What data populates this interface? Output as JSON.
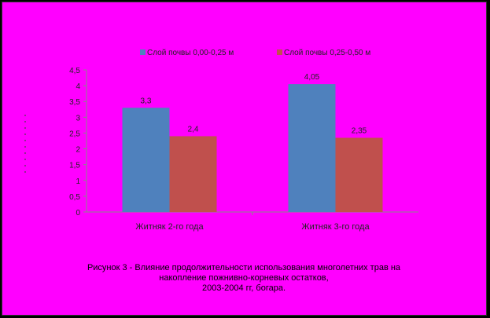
{
  "chart_data": {
    "type": "bar",
    "categories": [
      "Житняк 2-го года",
      "Житняк 3-го года"
    ],
    "series": [
      {
        "name": "Слой почвы 0,00-0,25 м",
        "values": [
          3.3,
          4.05
        ],
        "labels": [
          "3,3",
          "4,05"
        ],
        "color": "#4f81bd"
      },
      {
        "name": "Слой почвы 0,25-0,50 м",
        "values": [
          2.4,
          2.35
        ],
        "labels": [
          "2,4",
          "2,35"
        ],
        "color": "#c0504d"
      }
    ],
    "ylim": [
      0,
      4.5
    ],
    "yticks": [
      "0",
      "0,5",
      "1",
      "1,5",
      "2",
      "2,5",
      "3",
      "3,5",
      "4",
      "4,5"
    ],
    "ylabel": "",
    "legend": "top",
    "grid": false
  },
  "caption": {
    "line1": "Рисунок 3 - Влияние продолжительности использования многолетних трав на",
    "line2": "накопление пожнивно-корневых остатков,",
    "line3": "2003-2004 гг, богара."
  },
  "colors": {
    "background": "#ff00ff",
    "border": "#000000"
  }
}
